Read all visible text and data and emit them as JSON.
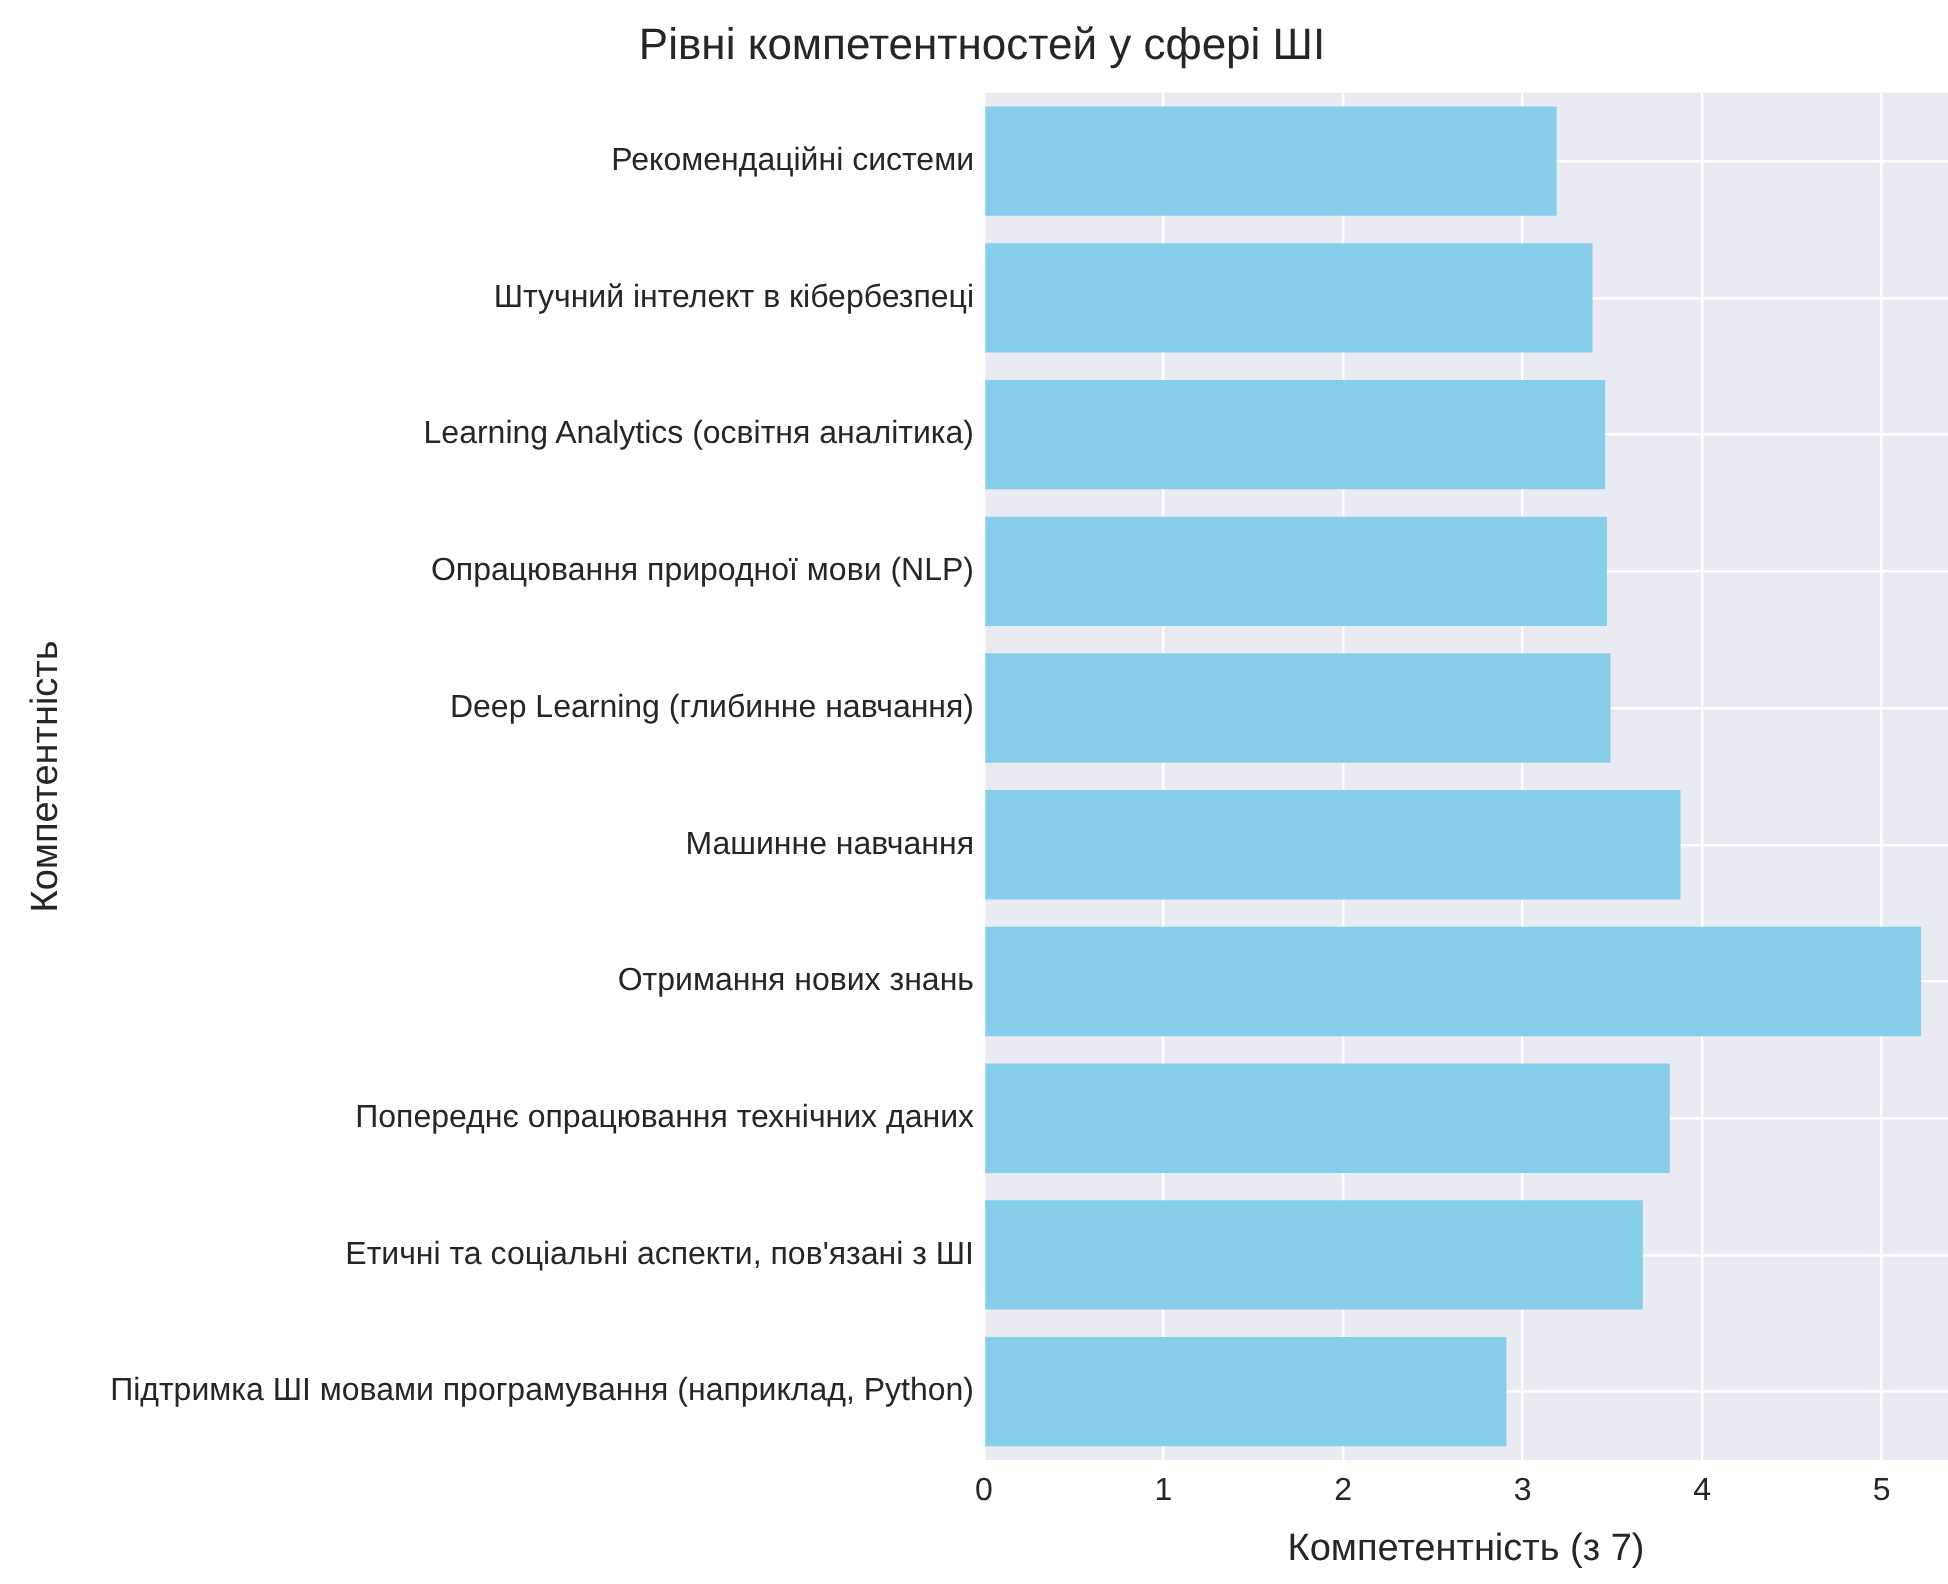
{
  "chart_data": {
    "type": "bar",
    "orientation": "horizontal",
    "title": "Рівні компетентностей у сфері ШІ",
    "xlabel": "Компетентність (з 7)",
    "ylabel": "Компетентність",
    "categories": [
      "Рекомендаційні системи",
      "Штучний інтелект в кібербезпеці",
      "Learning Analytics (освітня аналітика)",
      "Опрацювання природної мови (NLP)",
      "Deep Learning (глибинне навчання)",
      "Машинне навчання",
      "Отримання нових знань",
      "Попереднє опрацювання технічних даних",
      "Етичні та соціальні аспекти, пов'язані з ШІ",
      "Підтримка ШІ мовами програмування (наприклад, Python)"
    ],
    "values": [
      3.19,
      3.39,
      3.46,
      3.47,
      3.49,
      3.88,
      5.22,
      3.82,
      3.67,
      2.91
    ],
    "color": "#87ceeb",
    "xlim": [
      0,
      5.37
    ],
    "xticks": [
      0,
      1,
      2,
      3,
      4,
      5
    ],
    "grid": true
  }
}
